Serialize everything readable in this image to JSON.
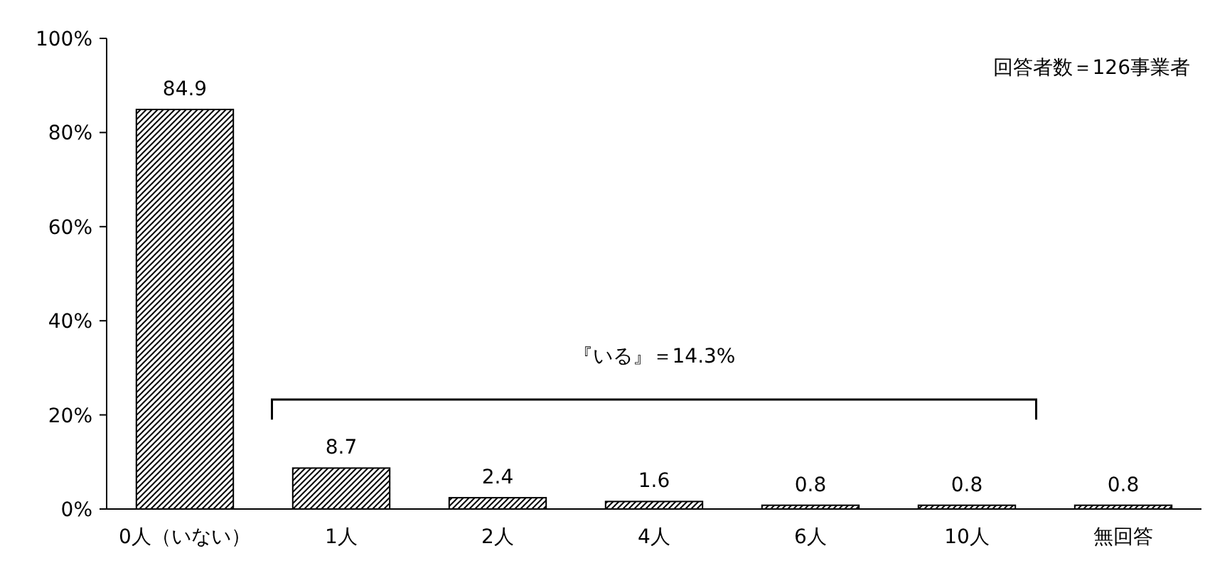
{
  "chart_data": {
    "type": "bar",
    "categories": [
      "0人（いない）",
      "1人",
      "2人",
      "4人",
      "6人",
      "10人",
      "無回答"
    ],
    "values": [
      84.9,
      8.7,
      2.4,
      1.6,
      0.8,
      0.8,
      0.8
    ],
    "color": "#000000",
    "ylim": [
      0,
      100
    ],
    "yticks": [
      {
        "value": 0,
        "label": "0%"
      },
      {
        "value": 20,
        "label": "20%"
      },
      {
        "value": 40,
        "label": "40%"
      },
      {
        "value": 60,
        "label": "60%"
      },
      {
        "value": 80,
        "label": "80%"
      },
      {
        "value": 100,
        "label": "100%"
      }
    ],
    "data_labels": true,
    "grid": false,
    "annotations": [
      "回答者数＝126事業者",
      "『いる』＝14.3%"
    ]
  }
}
